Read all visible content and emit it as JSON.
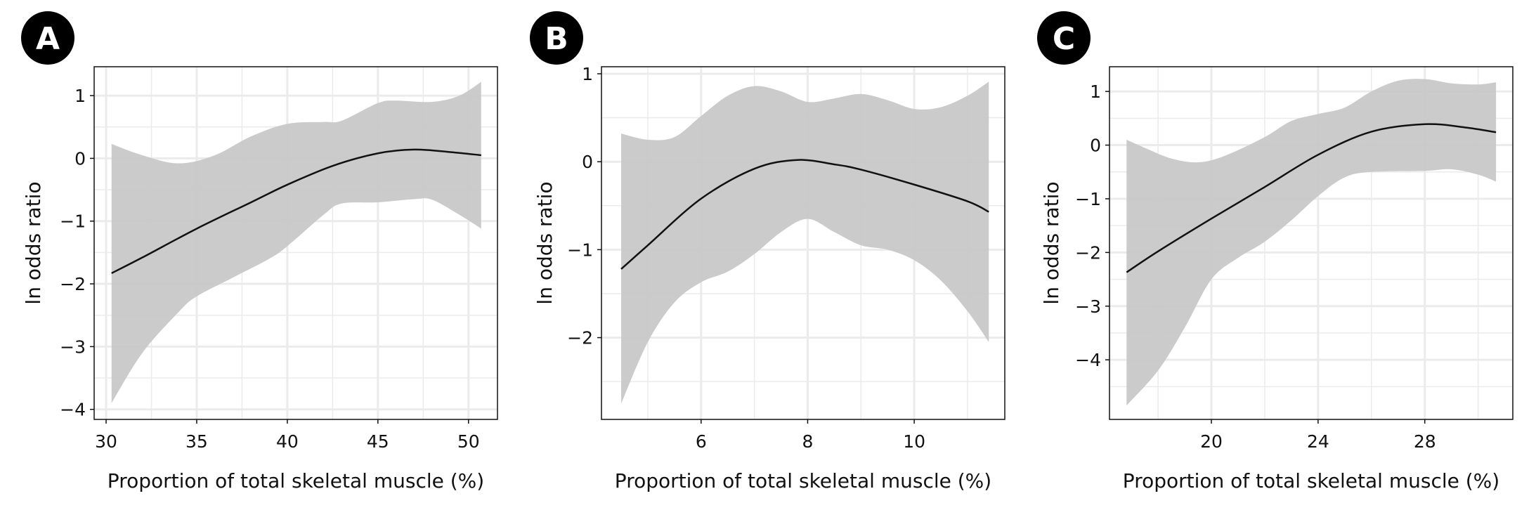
{
  "colors": {
    "band": "#c8c8c8",
    "line": "#111111",
    "grid": "#ebebeb",
    "badge": "#000000"
  },
  "chart_data": [
    {
      "panel": "A",
      "type": "line",
      "xlabel": "Proportion of total skeletal muscle (%)",
      "ylabel": "ln odds ratio",
      "xlim": [
        29.34,
        51.6
      ],
      "ylim": [
        -4.16,
        1.46
      ],
      "xticks": [
        30,
        35,
        40,
        45,
        50
      ],
      "yticks": [
        1,
        0,
        -1,
        -2,
        -3,
        -4
      ],
      "xminor": [
        32.5,
        37.5,
        42.5,
        47.5
      ],
      "yminor": [
        0.5,
        -0.5,
        -1.5,
        -2.5,
        -3.5
      ],
      "fit": {
        "x": [
          30.3,
          32,
          35,
          38,
          40,
          42.5,
          45,
          47,
          49,
          50.7
        ],
        "y": [
          -1.83,
          -1.58,
          -1.12,
          -0.7,
          -0.42,
          -0.12,
          0.08,
          0.14,
          0.1,
          0.05
        ]
      },
      "upper": {
        "x": [
          30.3,
          32,
          34,
          36,
          38,
          40,
          42,
          43,
          45,
          46,
          48,
          49.5,
          50.7
        ],
        "y": [
          0.23,
          0.05,
          -0.08,
          0.05,
          0.35,
          0.55,
          0.58,
          0.6,
          0.88,
          0.92,
          0.9,
          1.0,
          1.22
        ]
      },
      "lower": {
        "x": [
          30.3,
          32,
          34,
          35,
          37,
          39,
          40,
          42,
          43,
          45,
          47,
          48,
          49.5,
          50.7
        ],
        "y": [
          -3.9,
          -3.1,
          -2.45,
          -2.2,
          -1.9,
          -1.6,
          -1.4,
          -0.9,
          -0.72,
          -0.7,
          -0.65,
          -0.66,
          -0.9,
          -1.12
        ]
      }
    },
    {
      "panel": "B",
      "type": "line",
      "xlabel": "Proportion of total skeletal muscle (%)",
      "ylabel": "ln odds ratio",
      "xlim": [
        4.13,
        11.7
      ],
      "ylim": [
        -2.93,
        1.08
      ],
      "xticks": [
        6,
        8,
        10
      ],
      "yticks": [
        1,
        0,
        -1,
        -2
      ],
      "xminor": [
        5,
        7,
        9,
        11
      ],
      "yminor": [
        0.5,
        -0.5,
        -1.5,
        -2.5
      ],
      "fit": {
        "x": [
          4.5,
          5,
          6,
          7,
          7.8,
          8.5,
          9,
          10,
          11,
          11.4
        ],
        "y": [
          -1.22,
          -0.95,
          -0.42,
          -0.08,
          0.02,
          -0.03,
          -0.09,
          -0.26,
          -0.45,
          -0.57
        ]
      },
      "upper": {
        "x": [
          4.5,
          5,
          5.5,
          6,
          6.5,
          7,
          7.5,
          8,
          8.5,
          9,
          9.5,
          10,
          10.5,
          11,
          11.4
        ],
        "y": [
          0.32,
          0.25,
          0.28,
          0.52,
          0.75,
          0.86,
          0.8,
          0.68,
          0.72,
          0.77,
          0.7,
          0.6,
          0.62,
          0.75,
          0.91
        ]
      },
      "lower": {
        "x": [
          4.5,
          5,
          5.5,
          6,
          6.5,
          7,
          7.5,
          8,
          8.5,
          9,
          9.5,
          10,
          10.5,
          11,
          11.4
        ],
        "y": [
          -2.75,
          -2.05,
          -1.6,
          -1.37,
          -1.25,
          -1.05,
          -0.8,
          -0.65,
          -0.8,
          -0.95,
          -1.0,
          -1.12,
          -1.35,
          -1.7,
          -2.05
        ]
      }
    },
    {
      "panel": "C",
      "type": "line",
      "xlabel": "Proportion of total skeletal muscle (%)",
      "ylabel": "ln odds ratio",
      "xlim": [
        16.18,
        31.3
      ],
      "ylim": [
        -5.11,
        1.46
      ],
      "xticks": [
        20,
        24,
        28
      ],
      "yticks": [
        1,
        0,
        -1,
        -2,
        -3,
        -4
      ],
      "xminor": [
        18,
        22,
        26,
        30
      ],
      "yminor": [
        0.5,
        -0.5,
        -1.5,
        -2.5,
        -3.5,
        -4.5
      ],
      "fit": {
        "x": [
          16.82,
          18,
          20,
          22,
          24,
          26,
          28,
          29.5,
          30.67
        ],
        "y": [
          -2.37,
          -1.98,
          -1.37,
          -0.78,
          -0.18,
          0.25,
          0.39,
          0.33,
          0.24
        ]
      },
      "upper": {
        "x": [
          16.82,
          17.5,
          18.5,
          19.5,
          20.5,
          22,
          23,
          24,
          25,
          26,
          27,
          28,
          29,
          30,
          30.67
        ],
        "y": [
          0.1,
          -0.05,
          -0.25,
          -0.32,
          -0.2,
          0.15,
          0.45,
          0.58,
          0.7,
          1.0,
          1.2,
          1.23,
          1.15,
          1.13,
          1.17
        ]
      },
      "lower": {
        "x": [
          16.82,
          18,
          19,
          20,
          21,
          22,
          23,
          24,
          25,
          26,
          28,
          29,
          30,
          30.67
        ],
        "y": [
          -4.85,
          -4.2,
          -3.4,
          -2.5,
          -2.1,
          -1.8,
          -1.4,
          -0.95,
          -0.6,
          -0.5,
          -0.48,
          -0.45,
          -0.55,
          -0.68
        ]
      }
    }
  ]
}
